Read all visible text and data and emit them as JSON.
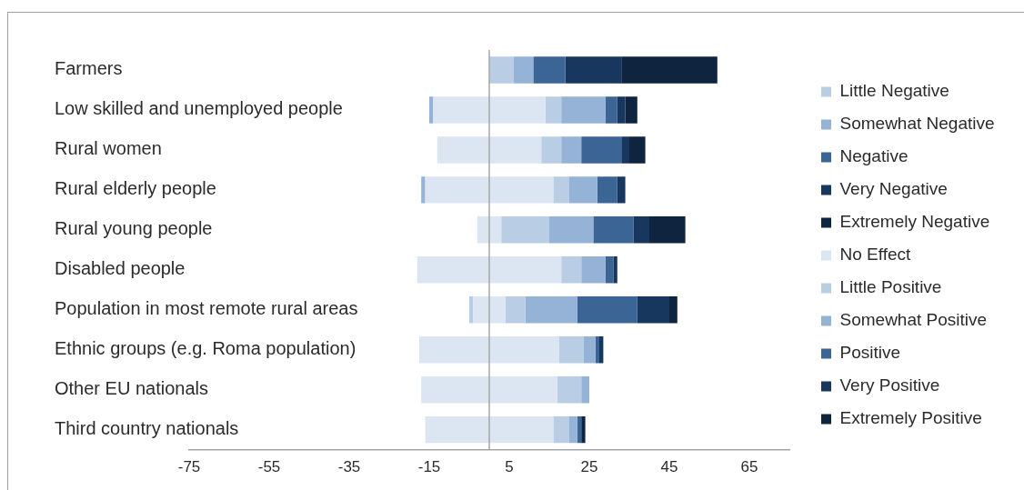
{
  "chart_data": {
    "type": "bar",
    "orientation": "horizontal",
    "stacked": true,
    "categories": [
      "Farmers",
      "Low skilled and unemployed people",
      "Rural women",
      "Rural elderly people",
      "Rural young people",
      "Disabled people",
      "Population in most remote rural areas",
      "Ethnic groups (e.g. Roma population)",
      "Other EU nationals",
      "Third country nationals"
    ],
    "xlim": [
      -75,
      75
    ],
    "xticks": [
      -75,
      -55,
      -35,
      -15,
      5,
      25,
      45,
      65
    ],
    "legend": "right",
    "series": [
      {
        "color": "#dce6f2",
        "values": [
          null,
          -14,
          -13,
          -16,
          -3,
          -18,
          -4,
          -17.5,
          -17,
          -16
        ]
      },
      {
        "name": "Little Negative",
        "color": "#b9cde5",
        "values": [
          null,
          null,
          null,
          null,
          null,
          null,
          -1,
          null,
          null,
          null
        ]
      },
      {
        "name": "Somewhat Negative",
        "color": "#95b3d7",
        "values": [
          null,
          -1,
          null,
          -1,
          null,
          null,
          null,
          null,
          null,
          null
        ]
      },
      {
        "name": "Negative",
        "color": "#3b6595",
        "values": [
          null,
          null,
          null,
          null,
          null,
          null,
          null,
          null,
          null,
          null
        ]
      },
      {
        "name": "Very Negative",
        "color": "#17375e",
        "values": [
          null,
          null,
          null,
          null,
          null,
          null,
          null,
          null,
          null,
          null
        ]
      },
      {
        "name": "Extremely Negative",
        "color": "#0f243e",
        "values": [
          null,
          null,
          null,
          null,
          null,
          null,
          null,
          null,
          null,
          null
        ]
      },
      {
        "name": "No Effect",
        "color": "#dce6f2",
        "values": [
          null,
          14,
          13,
          16,
          3,
          18,
          4,
          17.5,
          17,
          16
        ]
      },
      {
        "name": "Little Positive",
        "color": "#b9cde5",
        "values": [
          6,
          4,
          5,
          4,
          12,
          5,
          5,
          6,
          6,
          4
        ]
      },
      {
        "name": "Somewhat Positive",
        "color": "#95b3d7",
        "values": [
          5,
          11,
          5,
          7,
          11,
          6,
          13,
          3,
          2,
          2
        ]
      },
      {
        "name": "Positive",
        "color": "#3b6595",
        "values": [
          8,
          3,
          10,
          5,
          10,
          2,
          15,
          1,
          null,
          1
        ]
      },
      {
        "name": "Very Positive",
        "color": "#17375e",
        "values": [
          14,
          2,
          2,
          2,
          4,
          1,
          8,
          1,
          null,
          null
        ]
      },
      {
        "name": "Extremely Positive",
        "color": "#0f243e",
        "values": [
          24,
          3,
          4,
          null,
          9,
          null,
          2,
          null,
          null,
          1
        ]
      }
    ]
  }
}
